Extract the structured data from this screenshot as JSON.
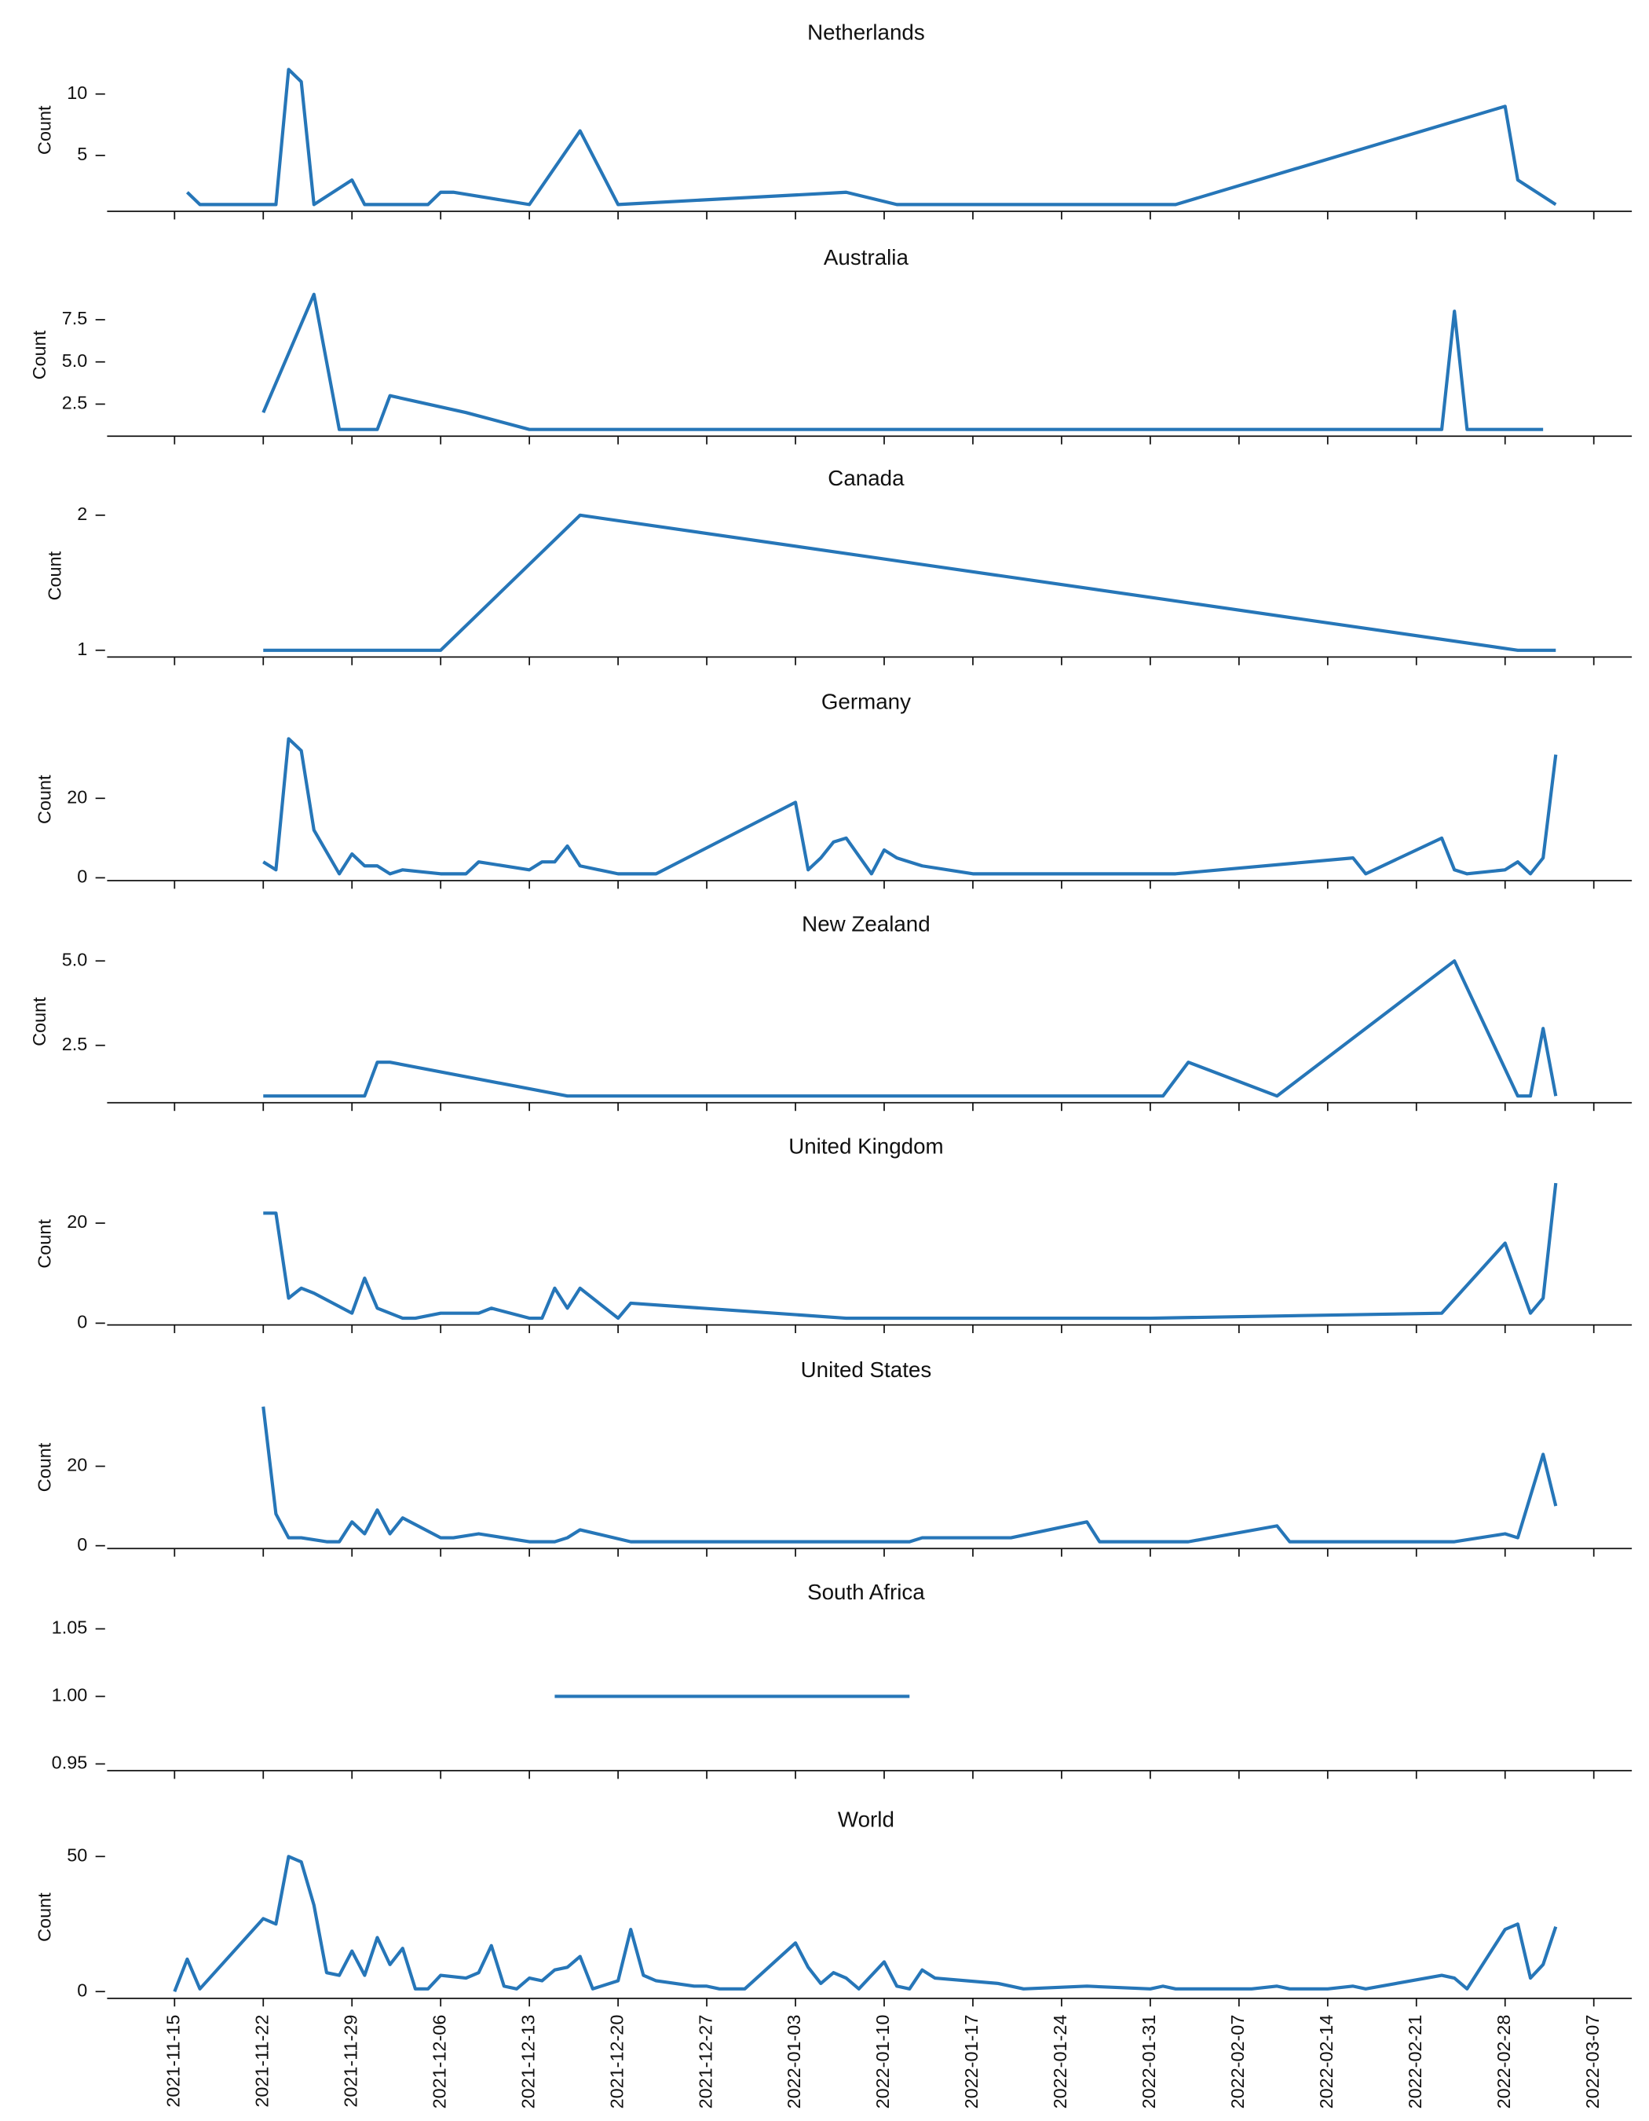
{
  "chart_data": [
    {
      "type": "line",
      "title": "Netherlands",
      "ylabel": "Count",
      "color": "#2676b8",
      "x": [
        "2021-11-16",
        "2021-11-17",
        "2021-11-23",
        "2021-11-24",
        "2021-11-25",
        "2021-11-26",
        "2021-11-29",
        "2021-11-30",
        "2021-12-05",
        "2021-12-06",
        "2021-12-07",
        "2021-12-13",
        "2021-12-17",
        "2021-12-20",
        "2022-01-07",
        "2022-01-11",
        "2022-02-02",
        "2022-02-28",
        "2022-03-01",
        "2022-03-04"
      ],
      "values": [
        2,
        1,
        1,
        12,
        11,
        1,
        3,
        1,
        1,
        2,
        2,
        1,
        7,
        1,
        2,
        1,
        1,
        9,
        3,
        1
      ],
      "xlim": [
        "2021-11-10",
        "2022-03-10"
      ],
      "ylim": [
        0.45,
        12.55
      ],
      "yticks": [
        5,
        10
      ]
    },
    {
      "type": "line",
      "title": "Australia",
      "ylabel": "Count",
      "color": "#2676b8",
      "x": [
        "2021-11-22",
        "2021-11-26",
        "2021-11-28",
        "2021-12-01",
        "2021-12-02",
        "2021-12-08",
        "2021-12-13",
        "2022-02-23",
        "2022-02-24",
        "2022-02-25",
        "2022-03-03"
      ],
      "values": [
        2,
        9,
        1,
        1,
        3,
        2,
        1,
        1,
        8,
        1,
        1
      ],
      "xlim": [
        "2021-11-10",
        "2022-03-10"
      ],
      "ylim": [
        0.6,
        9.4
      ],
      "yticks": [
        2.5,
        {
          "value": 5,
          "label": "5.0"
        },
        7.5
      ]
    },
    {
      "type": "line",
      "title": "Canada",
      "ylabel": "Count",
      "color": "#2676b8",
      "x": [
        "2021-11-22",
        "2021-12-06",
        "2021-12-17",
        "2022-03-01",
        "2022-03-04"
      ],
      "values": [
        1,
        1,
        2,
        1,
        1
      ],
      "xlim": [
        "2021-11-10",
        "2022-03-10"
      ],
      "ylim": [
        0.95,
        2.05
      ],
      "yticks": [
        1,
        2
      ]
    },
    {
      "type": "line",
      "title": "Germany",
      "ylabel": "Count",
      "color": "#2676b8",
      "x": [
        "2021-11-22",
        "2021-11-23",
        "2021-11-24",
        "2021-11-25",
        "2021-11-26",
        "2021-11-28",
        "2021-11-29",
        "2021-11-30",
        "2021-12-01",
        "2021-12-02",
        "2021-12-03",
        "2021-12-06",
        "2021-12-08",
        "2021-12-09",
        "2021-12-13",
        "2021-12-14",
        "2021-12-15",
        "2021-12-16",
        "2021-12-17",
        "2021-12-20",
        "2021-12-23",
        "2022-01-03",
        "2022-01-04",
        "2022-01-05",
        "2022-01-06",
        "2022-01-07",
        "2022-01-09",
        "2022-01-10",
        "2022-01-11",
        "2022-01-13",
        "2022-01-17",
        "2022-02-02",
        "2022-02-16",
        "2022-02-17",
        "2022-02-23",
        "2022-02-24",
        "2022-02-25",
        "2022-02-28",
        "2022-03-01",
        "2022-03-02",
        "2022-03-03",
        "2022-03-04"
      ],
      "values": [
        4,
        2,
        35,
        32,
        12,
        1,
        6,
        3,
        3,
        1,
        2,
        1,
        1,
        4,
        2,
        4,
        4,
        8,
        3,
        1,
        1,
        19,
        2,
        5,
        9,
        10,
        1,
        7,
        5,
        3,
        1,
        1,
        5,
        1,
        10,
        2,
        1,
        2,
        4,
        1,
        5,
        31
      ],
      "xlim": [
        "2021-11-10",
        "2022-03-10"
      ],
      "ylim": [
        -0.7,
        36.7
      ],
      "yticks": [
        0,
        20
      ]
    },
    {
      "type": "line",
      "title": "New Zealand",
      "ylabel": "Count",
      "color": "#2676b8",
      "x": [
        "2021-11-22",
        "2021-11-30",
        "2021-12-01",
        "2021-12-02",
        "2021-12-16",
        "2022-02-01",
        "2022-02-03",
        "2022-02-10",
        "2022-02-24",
        "2022-03-01",
        "2022-03-02",
        "2022-03-03",
        "2022-03-04"
      ],
      "values": [
        1,
        1,
        2,
        2,
        1,
        1,
        2,
        1,
        5,
        1,
        1,
        3,
        1
      ],
      "xlim": [
        "2021-11-10",
        "2022-03-10"
      ],
      "ylim": [
        0.8,
        5.2
      ],
      "yticks": [
        2.5,
        {
          "value": 5,
          "label": "5.0"
        }
      ]
    },
    {
      "type": "line",
      "title": "United Kingdom",
      "ylabel": "Count",
      "color": "#2676b8",
      "x": [
        "2021-11-22",
        "2021-11-23",
        "2021-11-24",
        "2021-11-25",
        "2021-11-26",
        "2021-11-29",
        "2021-11-30",
        "2021-12-01",
        "2021-12-03",
        "2021-12-04",
        "2021-12-06",
        "2021-12-09",
        "2021-12-10",
        "2021-12-13",
        "2021-12-14",
        "2021-12-15",
        "2021-12-16",
        "2021-12-17",
        "2021-12-20",
        "2021-12-21",
        "2022-01-07",
        "2022-01-31",
        "2022-02-23",
        "2022-02-28",
        "2022-03-02",
        "2022-03-03",
        "2022-03-04"
      ],
      "values": [
        22,
        22,
        5,
        7,
        6,
        2,
        9,
        3,
        1,
        1,
        2,
        2,
        3,
        1,
        1,
        7,
        3,
        7,
        1,
        4,
        1,
        1,
        2,
        16,
        2,
        5,
        28
      ],
      "xlim": [
        "2021-11-10",
        "2022-03-10"
      ],
      "ylim": [
        -0.35,
        29.35
      ],
      "yticks": [
        0,
        20
      ]
    },
    {
      "type": "line",
      "title": "United States",
      "ylabel": "Count",
      "color": "#2676b8",
      "x": [
        "2021-11-22",
        "2021-11-23",
        "2021-11-24",
        "2021-11-25",
        "2021-11-27",
        "2021-11-28",
        "2021-11-29",
        "2021-11-30",
        "2021-12-01",
        "2021-12-02",
        "2021-12-03",
        "2021-12-06",
        "2021-12-07",
        "2021-12-09",
        "2021-12-13",
        "2021-12-15",
        "2021-12-16",
        "2021-12-17",
        "2021-12-21",
        "2022-01-12",
        "2022-01-13",
        "2022-01-20",
        "2022-01-26",
        "2022-01-27",
        "2022-02-03",
        "2022-02-10",
        "2022-02-11",
        "2022-02-24",
        "2022-02-28",
        "2022-03-01",
        "2022-03-03",
        "2022-03-04"
      ],
      "values": [
        35,
        8,
        2,
        2,
        1,
        1,
        6,
        3,
        9,
        3,
        7,
        2,
        2,
        3,
        1,
        1,
        2,
        4,
        1,
        1,
        2,
        2,
        6,
        1,
        1,
        5,
        1,
        1,
        3,
        2,
        23,
        10
      ],
      "xlim": [
        "2021-11-10",
        "2022-03-10"
      ],
      "ylim": [
        -0.7,
        36.7
      ],
      "yticks": [
        0,
        20
      ]
    },
    {
      "type": "line",
      "title": "South Africa",
      "color": "#2676b8",
      "x": [
        "2021-12-15",
        "2022-01-12"
      ],
      "values": [
        1,
        1
      ],
      "xlim": [
        "2021-11-10",
        "2022-03-10"
      ],
      "ylim": [
        0.945,
        1.055
      ],
      "yticks": [
        0.95,
        {
          "value": 1,
          "label": "1.00"
        },
        1.05
      ]
    },
    {
      "type": "line",
      "title": "World",
      "ylabel": "Count",
      "color": "#2676b8",
      "x": [
        "2021-11-15",
        "2021-11-16",
        "2021-11-17",
        "2021-11-22",
        "2021-11-23",
        "2021-11-24",
        "2021-11-25",
        "2021-11-26",
        "2021-11-27",
        "2021-11-28",
        "2021-11-29",
        "2021-11-30",
        "2021-12-01",
        "2021-12-02",
        "2021-12-03",
        "2021-12-04",
        "2021-12-05",
        "2021-12-06",
        "2021-12-08",
        "2021-12-09",
        "2021-12-10",
        "2021-12-11",
        "2021-12-12",
        "2021-12-13",
        "2021-12-14",
        "2021-12-15",
        "2021-12-16",
        "2021-12-17",
        "2021-12-18",
        "2021-12-20",
        "2021-12-21",
        "2021-12-22",
        "2021-12-23",
        "2021-12-26",
        "2021-12-27",
        "2021-12-28",
        "2021-12-30",
        "2022-01-03",
        "2022-01-04",
        "2022-01-05",
        "2022-01-06",
        "2022-01-07",
        "2022-01-08",
        "2022-01-10",
        "2022-01-11",
        "2022-01-12",
        "2022-01-13",
        "2022-01-14",
        "2022-01-19",
        "2022-01-21",
        "2022-01-26",
        "2022-01-31",
        "2022-02-01",
        "2022-02-02",
        "2022-02-08",
        "2022-02-10",
        "2022-02-11",
        "2022-02-14",
        "2022-02-16",
        "2022-02-17",
        "2022-02-23",
        "2022-02-24",
        "2022-02-25",
        "2022-02-28",
        "2022-03-01",
        "2022-03-02",
        "2022-03-03",
        "2022-03-04"
      ],
      "values": [
        0,
        12,
        1,
        27,
        25,
        50,
        48,
        32,
        7,
        6,
        15,
        6,
        20,
        10,
        16,
        1,
        1,
        6,
        5,
        7,
        17,
        2,
        1,
        5,
        4,
        8,
        9,
        13,
        1,
        4,
        23,
        6,
        4,
        2,
        2,
        1,
        1,
        18,
        9,
        3,
        7,
        5,
        1,
        11,
        2,
        1,
        8,
        5,
        3,
        1,
        2,
        1,
        2,
        1,
        1,
        2,
        1,
        1,
        2,
        1,
        6,
        5,
        1,
        23,
        25,
        5,
        10,
        24
      ],
      "xlim": [
        "2021-11-10",
        "2022-03-10"
      ],
      "ylim": [
        -2.5,
        52.5
      ],
      "yticks": [
        0,
        50
      ],
      "xticks": [
        "2021-11-15",
        "2021-11-22",
        "2021-11-29",
        "2021-12-06",
        "2021-12-13",
        "2021-12-20",
        "2021-12-27",
        "2022-01-03",
        "2022-01-10",
        "2022-01-17",
        "2022-01-24",
        "2022-01-31",
        "2022-02-07",
        "2022-02-14",
        "2022-02-21",
        "2022-02-28",
        "2022-03-07"
      ]
    }
  ]
}
